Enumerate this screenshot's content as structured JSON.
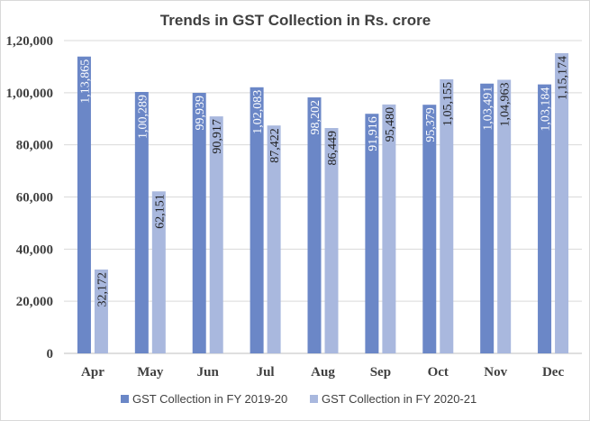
{
  "chart_data": {
    "type": "bar",
    "title": "Trends in GST Collection in Rs. crore",
    "xlabel": "",
    "ylabel": "",
    "categories": [
      "Apr",
      "May",
      "Jun",
      "Jul",
      "Aug",
      "Sep",
      "Oct",
      "Nov",
      "Dec"
    ],
    "ylim": [
      0,
      120000
    ],
    "yticks": [
      0,
      20000,
      40000,
      60000,
      80000,
      100000,
      120000
    ],
    "ytick_labels": [
      "0",
      "20,000",
      "40,000",
      "60,000",
      "80,000",
      "1,00,000",
      "1,20,000"
    ],
    "grid": true,
    "legend_position": "bottom",
    "series": [
      {
        "name": "GST Collection in FY 2019-20",
        "color": "#6b87c7",
        "label_color": "#ffffff",
        "values": [
          113865,
          100289,
          99939,
          102083,
          98202,
          91916,
          95379,
          103491,
          103184
        ],
        "labels": [
          "1,13,865",
          "1,00,289",
          "99,939",
          "1,02,083",
          "98,202",
          "91,916",
          "95,379",
          "1,03,491",
          "1,03,184"
        ]
      },
      {
        "name": "GST Collection in FY 2020-21",
        "color": "#a9b8de",
        "label_color": "#1f1f1f",
        "values": [
          32172,
          62151,
          90917,
          87422,
          86449,
          95480,
          105155,
          104963,
          115174
        ],
        "labels": [
          "32,172",
          "62,151",
          "90,917",
          "87,422",
          "86,449",
          "95,480",
          "1,05,155",
          "1,04,963",
          "1,15,174"
        ]
      }
    ]
  }
}
